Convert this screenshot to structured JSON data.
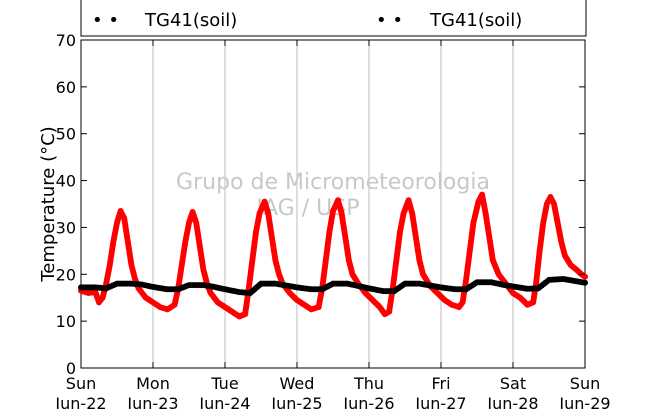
{
  "chart_data": {
    "type": "scatter",
    "title": "",
    "xlabel": "",
    "ylabel": "Temperature (°C)",
    "ylim": [
      0,
      70
    ],
    "yticks": [
      0,
      10,
      20,
      30,
      40,
      50,
      60,
      70
    ],
    "xlim": [
      0,
      7
    ],
    "x_unit": "days from Sun Jun-22 00:00",
    "xticks": [
      {
        "day": "Sun",
        "date": "Jun-22"
      },
      {
        "day": "Mon",
        "date": "Jun-23"
      },
      {
        "day": "Tue",
        "date": "Jun-24"
      },
      {
        "day": "Wed",
        "date": "Jun-25"
      },
      {
        "day": "Thu",
        "date": "Jun-26"
      },
      {
        "day": "Fri",
        "date": "Jun-27"
      },
      {
        "day": "Sat",
        "date": "Jun-28"
      },
      {
        "day": "Sun",
        "date": "Jun-29"
      }
    ],
    "grid": "vertical",
    "legend": {
      "placement": "top",
      "entries": [
        "TG41(soil)",
        "TG41(soil)"
      ],
      "marker": "• •"
    },
    "watermark": [
      "Grupo de Micrometeorologia",
      "IAG / USP"
    ],
    "series": [
      {
        "color": "#ff0000",
        "points": [
          [
            0.0,
            16.5
          ],
          [
            0.1,
            16.0
          ],
          [
            0.2,
            16.2
          ],
          [
            0.25,
            14.0
          ],
          [
            0.3,
            15.0
          ],
          [
            0.35,
            18.0
          ],
          [
            0.4,
            22.0
          ],
          [
            0.45,
            27.0
          ],
          [
            0.5,
            31.0
          ],
          [
            0.55,
            33.5
          ],
          [
            0.6,
            32.0
          ],
          [
            0.65,
            27.0
          ],
          [
            0.7,
            22.0
          ],
          [
            0.75,
            19.0
          ],
          [
            0.8,
            17.0
          ],
          [
            0.9,
            15.0
          ],
          [
            1.0,
            14.0
          ],
          [
            1.1,
            13.0
          ],
          [
            1.2,
            12.5
          ],
          [
            1.3,
            13.5
          ],
          [
            1.35,
            17.0
          ],
          [
            1.4,
            22.0
          ],
          [
            1.45,
            27.0
          ],
          [
            1.5,
            31.0
          ],
          [
            1.55,
            33.3
          ],
          [
            1.6,
            31.0
          ],
          [
            1.65,
            26.0
          ],
          [
            1.7,
            21.0
          ],
          [
            1.75,
            18.0
          ],
          [
            1.8,
            16.0
          ],
          [
            1.9,
            14.0
          ],
          [
            2.0,
            13.0
          ],
          [
            2.1,
            12.0
          ],
          [
            2.2,
            11.0
          ],
          [
            2.28,
            11.5
          ],
          [
            2.33,
            17.0
          ],
          [
            2.38,
            23.0
          ],
          [
            2.43,
            29.0
          ],
          [
            2.48,
            33.0
          ],
          [
            2.55,
            35.5
          ],
          [
            2.6,
            33.0
          ],
          [
            2.65,
            28.0
          ],
          [
            2.7,
            23.0
          ],
          [
            2.75,
            20.0
          ],
          [
            2.8,
            18.0
          ],
          [
            2.9,
            16.0
          ],
          [
            3.0,
            14.5
          ],
          [
            3.1,
            13.5
          ],
          [
            3.2,
            12.5
          ],
          [
            3.3,
            13.0
          ],
          [
            3.35,
            17.0
          ],
          [
            3.4,
            23.0
          ],
          [
            3.45,
            29.0
          ],
          [
            3.5,
            33.5
          ],
          [
            3.57,
            35.8
          ],
          [
            3.62,
            33.0
          ],
          [
            3.67,
            28.0
          ],
          [
            3.72,
            23.0
          ],
          [
            3.77,
            20.0
          ],
          [
            3.85,
            18.0
          ],
          [
            3.95,
            16.0
          ],
          [
            4.05,
            14.5
          ],
          [
            4.15,
            13.0
          ],
          [
            4.22,
            11.5
          ],
          [
            4.28,
            12.0
          ],
          [
            4.33,
            17.0
          ],
          [
            4.38,
            23.0
          ],
          [
            4.43,
            29.0
          ],
          [
            4.48,
            33.0
          ],
          [
            4.55,
            35.8
          ],
          [
            4.6,
            33.0
          ],
          [
            4.65,
            28.0
          ],
          [
            4.7,
            23.0
          ],
          [
            4.75,
            20.0
          ],
          [
            4.85,
            17.5
          ],
          [
            4.95,
            16.0
          ],
          [
            5.05,
            14.5
          ],
          [
            5.15,
            13.5
          ],
          [
            5.25,
            13.0
          ],
          [
            5.3,
            14.0
          ],
          [
            5.35,
            19.0
          ],
          [
            5.4,
            25.0
          ],
          [
            5.45,
            31.0
          ],
          [
            5.52,
            35.5
          ],
          [
            5.57,
            37.0
          ],
          [
            5.62,
            33.0
          ],
          [
            5.67,
            28.0
          ],
          [
            5.72,
            23.0
          ],
          [
            5.8,
            20.0
          ],
          [
            5.9,
            18.0
          ],
          [
            6.0,
            16.0
          ],
          [
            6.1,
            15.0
          ],
          [
            6.2,
            13.5
          ],
          [
            6.28,
            14.0
          ],
          [
            6.32,
            18.0
          ],
          [
            6.37,
            25.0
          ],
          [
            6.42,
            31.0
          ],
          [
            6.47,
            35.0
          ],
          [
            6.52,
            36.5
          ],
          [
            6.57,
            35.0
          ],
          [
            6.62,
            31.0
          ],
          [
            6.67,
            27.0
          ],
          [
            6.72,
            24.0
          ],
          [
            6.8,
            22.0
          ],
          [
            6.88,
            21.0
          ],
          [
            6.95,
            20.0
          ],
          [
            7.0,
            19.5
          ]
        ]
      },
      {
        "color": "#000000",
        "points": [
          [
            0.0,
            17.2
          ],
          [
            0.2,
            17.2
          ],
          [
            0.35,
            17.0
          ],
          [
            0.5,
            18.0
          ],
          [
            0.7,
            18.0
          ],
          [
            0.85,
            17.8
          ],
          [
            1.0,
            17.3
          ],
          [
            1.2,
            16.8
          ],
          [
            1.35,
            16.8
          ],
          [
            1.5,
            17.7
          ],
          [
            1.7,
            17.7
          ],
          [
            1.85,
            17.3
          ],
          [
            2.0,
            16.8
          ],
          [
            2.2,
            16.2
          ],
          [
            2.35,
            16.0
          ],
          [
            2.5,
            18.0
          ],
          [
            2.7,
            18.0
          ],
          [
            2.85,
            17.6
          ],
          [
            3.0,
            17.2
          ],
          [
            3.2,
            16.8
          ],
          [
            3.35,
            16.8
          ],
          [
            3.5,
            18.0
          ],
          [
            3.7,
            18.0
          ],
          [
            3.85,
            17.5
          ],
          [
            4.0,
            17.0
          ],
          [
            4.2,
            16.4
          ],
          [
            4.35,
            16.4
          ],
          [
            4.5,
            18.0
          ],
          [
            4.7,
            18.0
          ],
          [
            4.85,
            17.6
          ],
          [
            5.0,
            17.2
          ],
          [
            5.2,
            16.8
          ],
          [
            5.35,
            16.8
          ],
          [
            5.5,
            18.3
          ],
          [
            5.7,
            18.3
          ],
          [
            5.85,
            17.8
          ],
          [
            6.0,
            17.4
          ],
          [
            6.2,
            16.9
          ],
          [
            6.35,
            17.0
          ],
          [
            6.5,
            18.8
          ],
          [
            6.7,
            19.0
          ],
          [
            6.85,
            18.6
          ],
          [
            7.0,
            18.2
          ]
        ]
      }
    ]
  }
}
